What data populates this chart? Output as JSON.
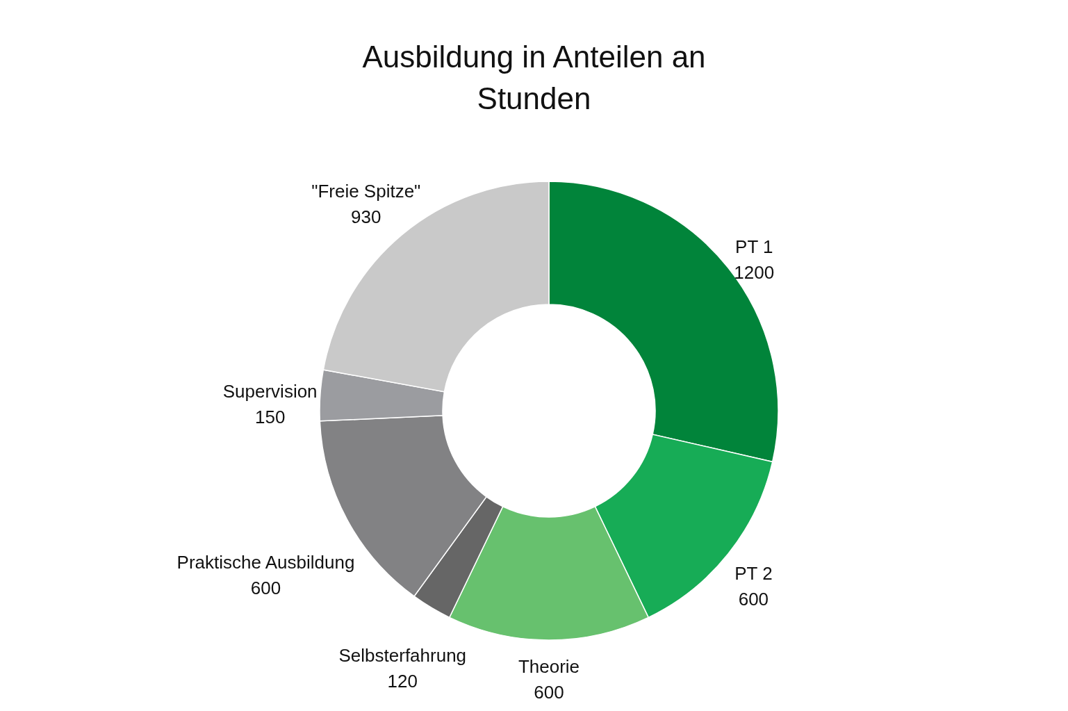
{
  "chart_data": {
    "type": "donut",
    "title": "Ausbildung in Anteilen an Stunden",
    "categories": [
      "PT 1",
      "PT 2",
      "Theorie",
      "Selbsterfahrung",
      "Praktische Ausbildung",
      "Supervision",
      "\"Freie Spitze\""
    ],
    "values": [
      1200,
      600,
      600,
      120,
      600,
      150,
      930
    ],
    "colors": [
      "#01843a",
      "#17ac56",
      "#67c16e",
      "#666666",
      "#828284",
      "#9b9ca0",
      "#c9c9c9"
    ],
    "data_labels": true
  }
}
